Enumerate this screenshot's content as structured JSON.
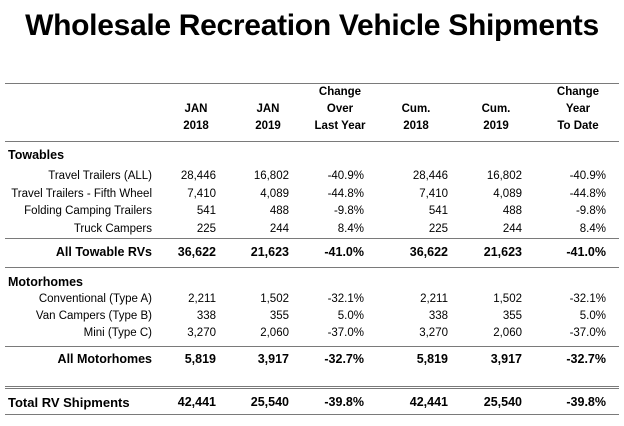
{
  "title": "Wholesale Recreation Vehicle Shipments",
  "headers": [
    [
      "JAN",
      "2018"
    ],
    [
      "JAN",
      "2019"
    ],
    [
      "Change",
      "Over",
      "Last Year"
    ],
    [
      "Cum.",
      "2018"
    ],
    [
      "Cum.",
      "2019"
    ],
    [
      "Change",
      "Year",
      "To Date"
    ]
  ],
  "towables": {
    "heading": "Towables",
    "rows": [
      {
        "label": "Travel Trailers (ALL)",
        "values": [
          "28,446",
          "16,802",
          "-40.9%",
          "28,446",
          "16,802",
          "-40.9%"
        ]
      },
      {
        "label": "Travel Trailers - Fifth Wheel",
        "values": [
          "7,410",
          "4,089",
          "-44.8%",
          "7,410",
          "4,089",
          "-44.8%"
        ]
      },
      {
        "label": "Folding Camping Trailers",
        "values": [
          "541",
          "488",
          "-9.8%",
          "541",
          "488",
          "-9.8%"
        ]
      },
      {
        "label": "Truck Campers",
        "values": [
          "225",
          "244",
          "8.4%",
          "225",
          "244",
          "8.4%"
        ]
      }
    ],
    "total": {
      "label": "All Towable RVs",
      "values": [
        "36,622",
        "21,623",
        "-41.0%",
        "36,622",
        "21,623",
        "-41.0%"
      ]
    }
  },
  "motorhomes": {
    "heading": "Motorhomes",
    "rows": [
      {
        "label": "Conventional (Type A)",
        "values": [
          "2,211",
          "1,502",
          "-32.1%",
          "2,211",
          "1,502",
          "-32.1%"
        ]
      },
      {
        "label": "Van Campers (Type B)",
        "values": [
          "338",
          "355",
          "5.0%",
          "338",
          "355",
          "5.0%"
        ]
      },
      {
        "label": "Mini (Type C)",
        "values": [
          "3,270",
          "2,060",
          "-37.0%",
          "3,270",
          "2,060",
          "-37.0%"
        ]
      }
    ],
    "total": {
      "label": "All Motorhomes",
      "values": [
        "5,819",
        "3,917",
        "-32.7%",
        "5,819",
        "3,917",
        "-32.7%"
      ]
    }
  },
  "grand_total": {
    "label": "Total RV Shipments",
    "values": [
      "42,441",
      "25,540",
      "-39.8%",
      "42,441",
      "25,540",
      "-39.8%"
    ]
  }
}
